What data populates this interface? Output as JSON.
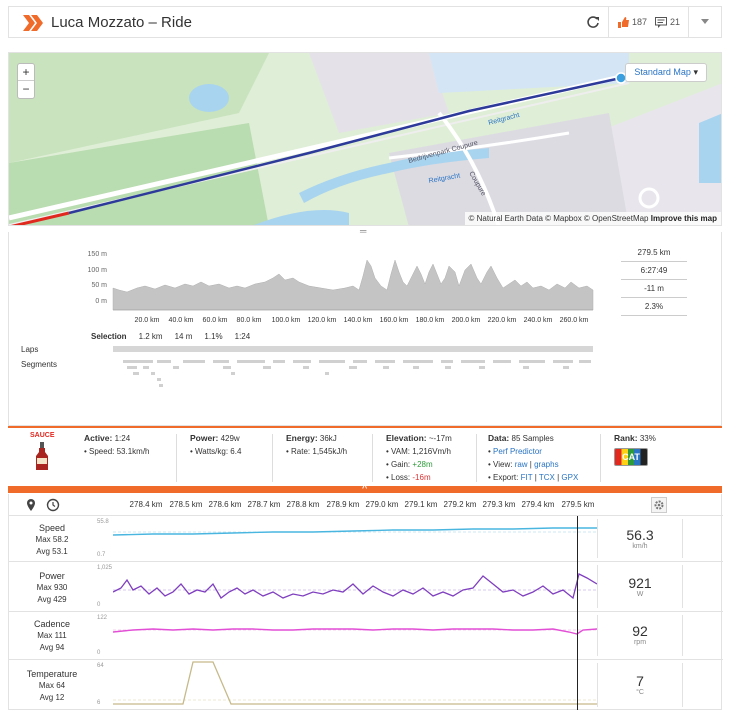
{
  "header": {
    "title": "Luca Mozzato – Ride",
    "kudos_count": "187",
    "comments_count": "21"
  },
  "map": {
    "zoom_in": "+",
    "zoom_out": "−",
    "style_label": "Standard Map",
    "attribution_text": "© Natural Earth Data © Mapbox © OpenStreetMap",
    "attribution_link": "Improve this map",
    "place_labels": [
      "Bedrijvenpark Coupure",
      "Reitgracht",
      "Reitgracht",
      "Coupure"
    ]
  },
  "elevation": {
    "y_ticks": [
      "150 m",
      "100 m",
      "50 m",
      "0 m"
    ],
    "x_ticks": [
      "20.0 km",
      "40.0 km",
      "60.0 km",
      "80.0 km",
      "100.0 km",
      "120.0 km",
      "140.0 km",
      "160.0 km",
      "180.0 km",
      "200.0 km",
      "220.0 km",
      "240.0 km",
      "260.0 km"
    ],
    "stats": [
      "279.5 km",
      "6:27:49",
      "-11 m",
      "2.3%"
    ],
    "selection_label": "Selection",
    "selection_values": [
      "1.2 km",
      "14 m",
      "1.1%",
      "1:24"
    ],
    "laps_label": "Laps",
    "segments_label": "Segments"
  },
  "stats": {
    "logo_text": "SAUCE",
    "active_label": "Active:",
    "active_value": "1:24",
    "speed_line": "• Speed: 53.1km/h",
    "power_label": "Power:",
    "power_value": "429w",
    "watts_line": "• Watts/kg: 6.4",
    "energy_label": "Energy:",
    "energy_value": "36kJ",
    "rate_line": "• Rate: 1,545kJ/h",
    "elevation_label": "Elevation:",
    "elevation_value": "~-17m",
    "vam_line": "• VAM: 1,216Vm/h",
    "gain_label": "• Gain:",
    "gain_value": "+28m",
    "loss_label": "• Loss:",
    "loss_value": "-16m",
    "data_label": "Data:",
    "data_value": "85 Samples",
    "perf_prefix": "•",
    "perf_link": "Perf Predictor",
    "view_label": "• View:",
    "view_raw": "raw",
    "view_graphs": "graphs",
    "export_label": "• Export:",
    "export_fit": "FIT",
    "export_tcx": "TCX",
    "export_gpx": "GPX",
    "rank_label": "Rank:",
    "rank_value": "33%",
    "rank_badge": "CAT"
  },
  "divider_caret": "^",
  "streams": {
    "x_ticks": [
      "278.4 km",
      "278.5 km",
      "278.6 km",
      "278.7 km",
      "278.8 km",
      "278.9 km",
      "279.0 km",
      "279.1 km",
      "279.2 km",
      "279.3 km",
      "279.4 km",
      "279.5 km"
    ],
    "rows": [
      {
        "name": "Speed",
        "max": "Max 58.2",
        "avg": "Avg 53.1",
        "ymax": "55.8",
        "ymin": "0.7",
        "value": "56.3",
        "unit": "km/h",
        "color": "#49b6e0"
      },
      {
        "name": "Power",
        "max": "Max 930",
        "avg": "Avg 429",
        "ymax": "1,025",
        "ymin": "0",
        "value": "921",
        "unit": "W",
        "color": "#7f3fbf"
      },
      {
        "name": "Cadence",
        "max": "Max 111",
        "avg": "Avg 94",
        "ymax": "122",
        "ymin": "0",
        "value": "92",
        "unit": "rpm",
        "color": "#e24fd6"
      },
      {
        "name": "Temperature",
        "max": "Max 64",
        "avg": "Avg 12",
        "ymax": "64",
        "ymin": "6",
        "value": "7",
        "unit": "°C",
        "color": "#c6b98a"
      }
    ]
  }
}
